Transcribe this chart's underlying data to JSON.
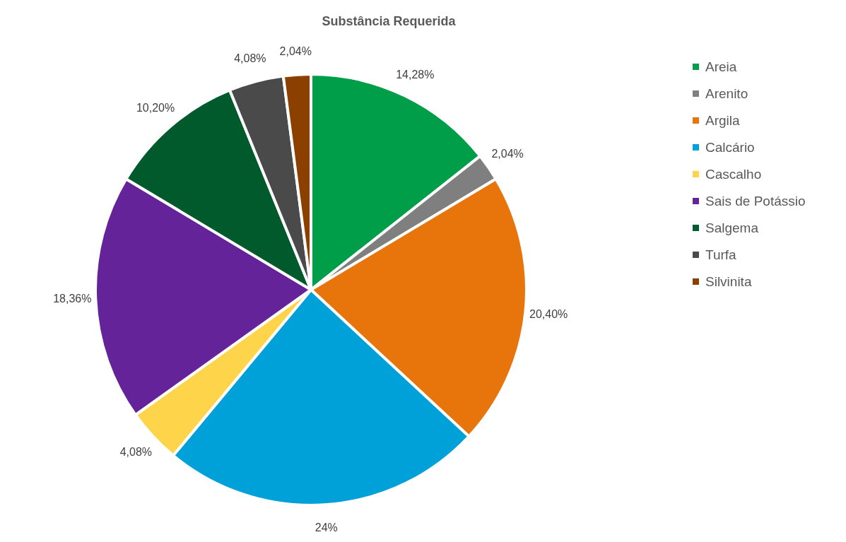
{
  "chart_data": {
    "type": "pie",
    "title": "Substância Requerida",
    "categories": [
      "Areia",
      "Arenito",
      "Argila",
      "Calcário",
      "Cascalho",
      "Sais de Potássio",
      "Salgema",
      "Turfa",
      "Silvinita"
    ],
    "values": [
      14.28,
      2.04,
      20.4,
      24,
      4.08,
      18.36,
      10.2,
      4.08,
      2.04
    ],
    "value_labels": [
      "14,28%",
      "2,04%",
      "20,40%",
      "24%",
      "4,08%",
      "18,36%",
      "10,20%",
      "4,08%",
      "2,04%"
    ],
    "colors": [
      "#009e49",
      "#7f7f7f",
      "#e8740c",
      "#00a0d8",
      "#fdd44a",
      "#652399",
      "#005a2b",
      "#4a4a4a",
      "#8b4000"
    ],
    "legend": "right"
  }
}
